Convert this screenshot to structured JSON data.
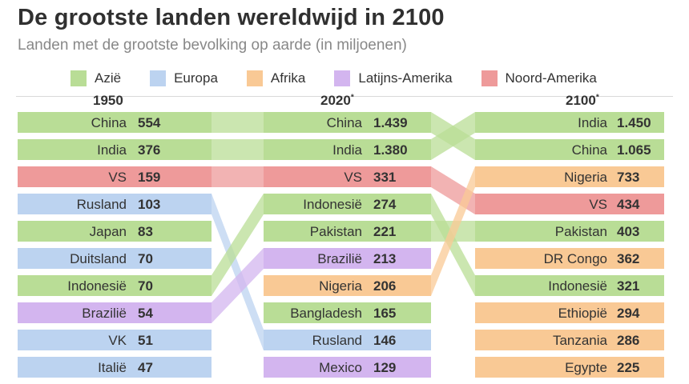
{
  "title": "De grootste landen wereldwijd in 2100",
  "subtitle": "Landen met de grootste bevolking op aarde (in miljoenen)",
  "colors": {
    "Azië": "#b9dd96",
    "Europa": "#bcd3f0",
    "Afrika": "#f9c995",
    "Latijns-Amerika": "#d3b5ef",
    "Noord-Amerika": "#ee9a9a"
  },
  "legend": [
    {
      "label": "Azië",
      "region": "Azië"
    },
    {
      "label": "Europa",
      "region": "Europa"
    },
    {
      "label": "Afrika",
      "region": "Afrika"
    },
    {
      "label": "Latijns-Amerika",
      "region": "Latijns-Amerika"
    },
    {
      "label": "Noord-Amerika",
      "region": "Noord-Amerika"
    }
  ],
  "years": [
    {
      "label": "1950",
      "mark": ""
    },
    {
      "label": "2020",
      "mark": "*"
    },
    {
      "label": "2100",
      "mark": "*"
    }
  ],
  "chart_data": {
    "type": "table",
    "title": "De grootste landen wereldwijd in 2100",
    "subtitle": "Landen met de grootste bevolking op aarde (in miljoenen)",
    "unit": "miljoenen",
    "columns": [
      {
        "year": "1950",
        "rows": [
          {
            "country": "China",
            "value": 554,
            "label": "554",
            "region": "Azië"
          },
          {
            "country": "India",
            "value": 376,
            "label": "376",
            "region": "Azië"
          },
          {
            "country": "VS",
            "value": 159,
            "label": "159",
            "region": "Noord-Amerika"
          },
          {
            "country": "Rusland",
            "value": 103,
            "label": "103",
            "region": "Europa"
          },
          {
            "country": "Japan",
            "value": 83,
            "label": "83",
            "region": "Azië"
          },
          {
            "country": "Duitsland",
            "value": 70,
            "label": "70",
            "region": "Europa"
          },
          {
            "country": "Indonesië",
            "value": 70,
            "label": "70",
            "region": "Azië"
          },
          {
            "country": "Brazilië",
            "value": 54,
            "label": "54",
            "region": "Latijns-Amerika"
          },
          {
            "country": "VK",
            "value": 51,
            "label": "51",
            "region": "Europa"
          },
          {
            "country": "Italië",
            "value": 47,
            "label": "47",
            "region": "Europa"
          }
        ]
      },
      {
        "year": "2020",
        "rows": [
          {
            "country": "China",
            "value": 1439,
            "label": "1.439",
            "region": "Azië"
          },
          {
            "country": "India",
            "value": 1380,
            "label": "1.380",
            "region": "Azië"
          },
          {
            "country": "VS",
            "value": 331,
            "label": "331",
            "region": "Noord-Amerika"
          },
          {
            "country": "Indonesië",
            "value": 274,
            "label": "274",
            "region": "Azië"
          },
          {
            "country": "Pakistan",
            "value": 221,
            "label": "221",
            "region": "Azië"
          },
          {
            "country": "Brazilië",
            "value": 213,
            "label": "213",
            "region": "Latijns-Amerika"
          },
          {
            "country": "Nigeria",
            "value": 206,
            "label": "206",
            "region": "Afrika"
          },
          {
            "country": "Bangladesh",
            "value": 165,
            "label": "165",
            "region": "Azië"
          },
          {
            "country": "Rusland",
            "value": 146,
            "label": "146",
            "region": "Europa"
          },
          {
            "country": "Mexico",
            "value": 129,
            "label": "129",
            "region": "Latijns-Amerika"
          }
        ]
      },
      {
        "year": "2100",
        "rows": [
          {
            "country": "India",
            "value": 1450,
            "label": "1.450",
            "region": "Azië"
          },
          {
            "country": "China",
            "value": 1065,
            "label": "1.065",
            "region": "Azië"
          },
          {
            "country": "Nigeria",
            "value": 733,
            "label": "733",
            "region": "Afrika"
          },
          {
            "country": "VS",
            "value": 434,
            "label": "434",
            "region": "Noord-Amerika"
          },
          {
            "country": "Pakistan",
            "value": 403,
            "label": "403",
            "region": "Azië"
          },
          {
            "country": "DR Congo",
            "value": 362,
            "label": "362",
            "region": "Afrika"
          },
          {
            "country": "Indonesië",
            "value": 321,
            "label": "321",
            "region": "Azië"
          },
          {
            "country": "Ethiopië",
            "value": 294,
            "label": "294",
            "region": "Afrika"
          },
          {
            "country": "Tanzania",
            "value": 286,
            "label": "286",
            "region": "Afrika"
          },
          {
            "country": "Egypte",
            "value": 225,
            "label": "225",
            "region": "Afrika"
          }
        ]
      }
    ]
  }
}
